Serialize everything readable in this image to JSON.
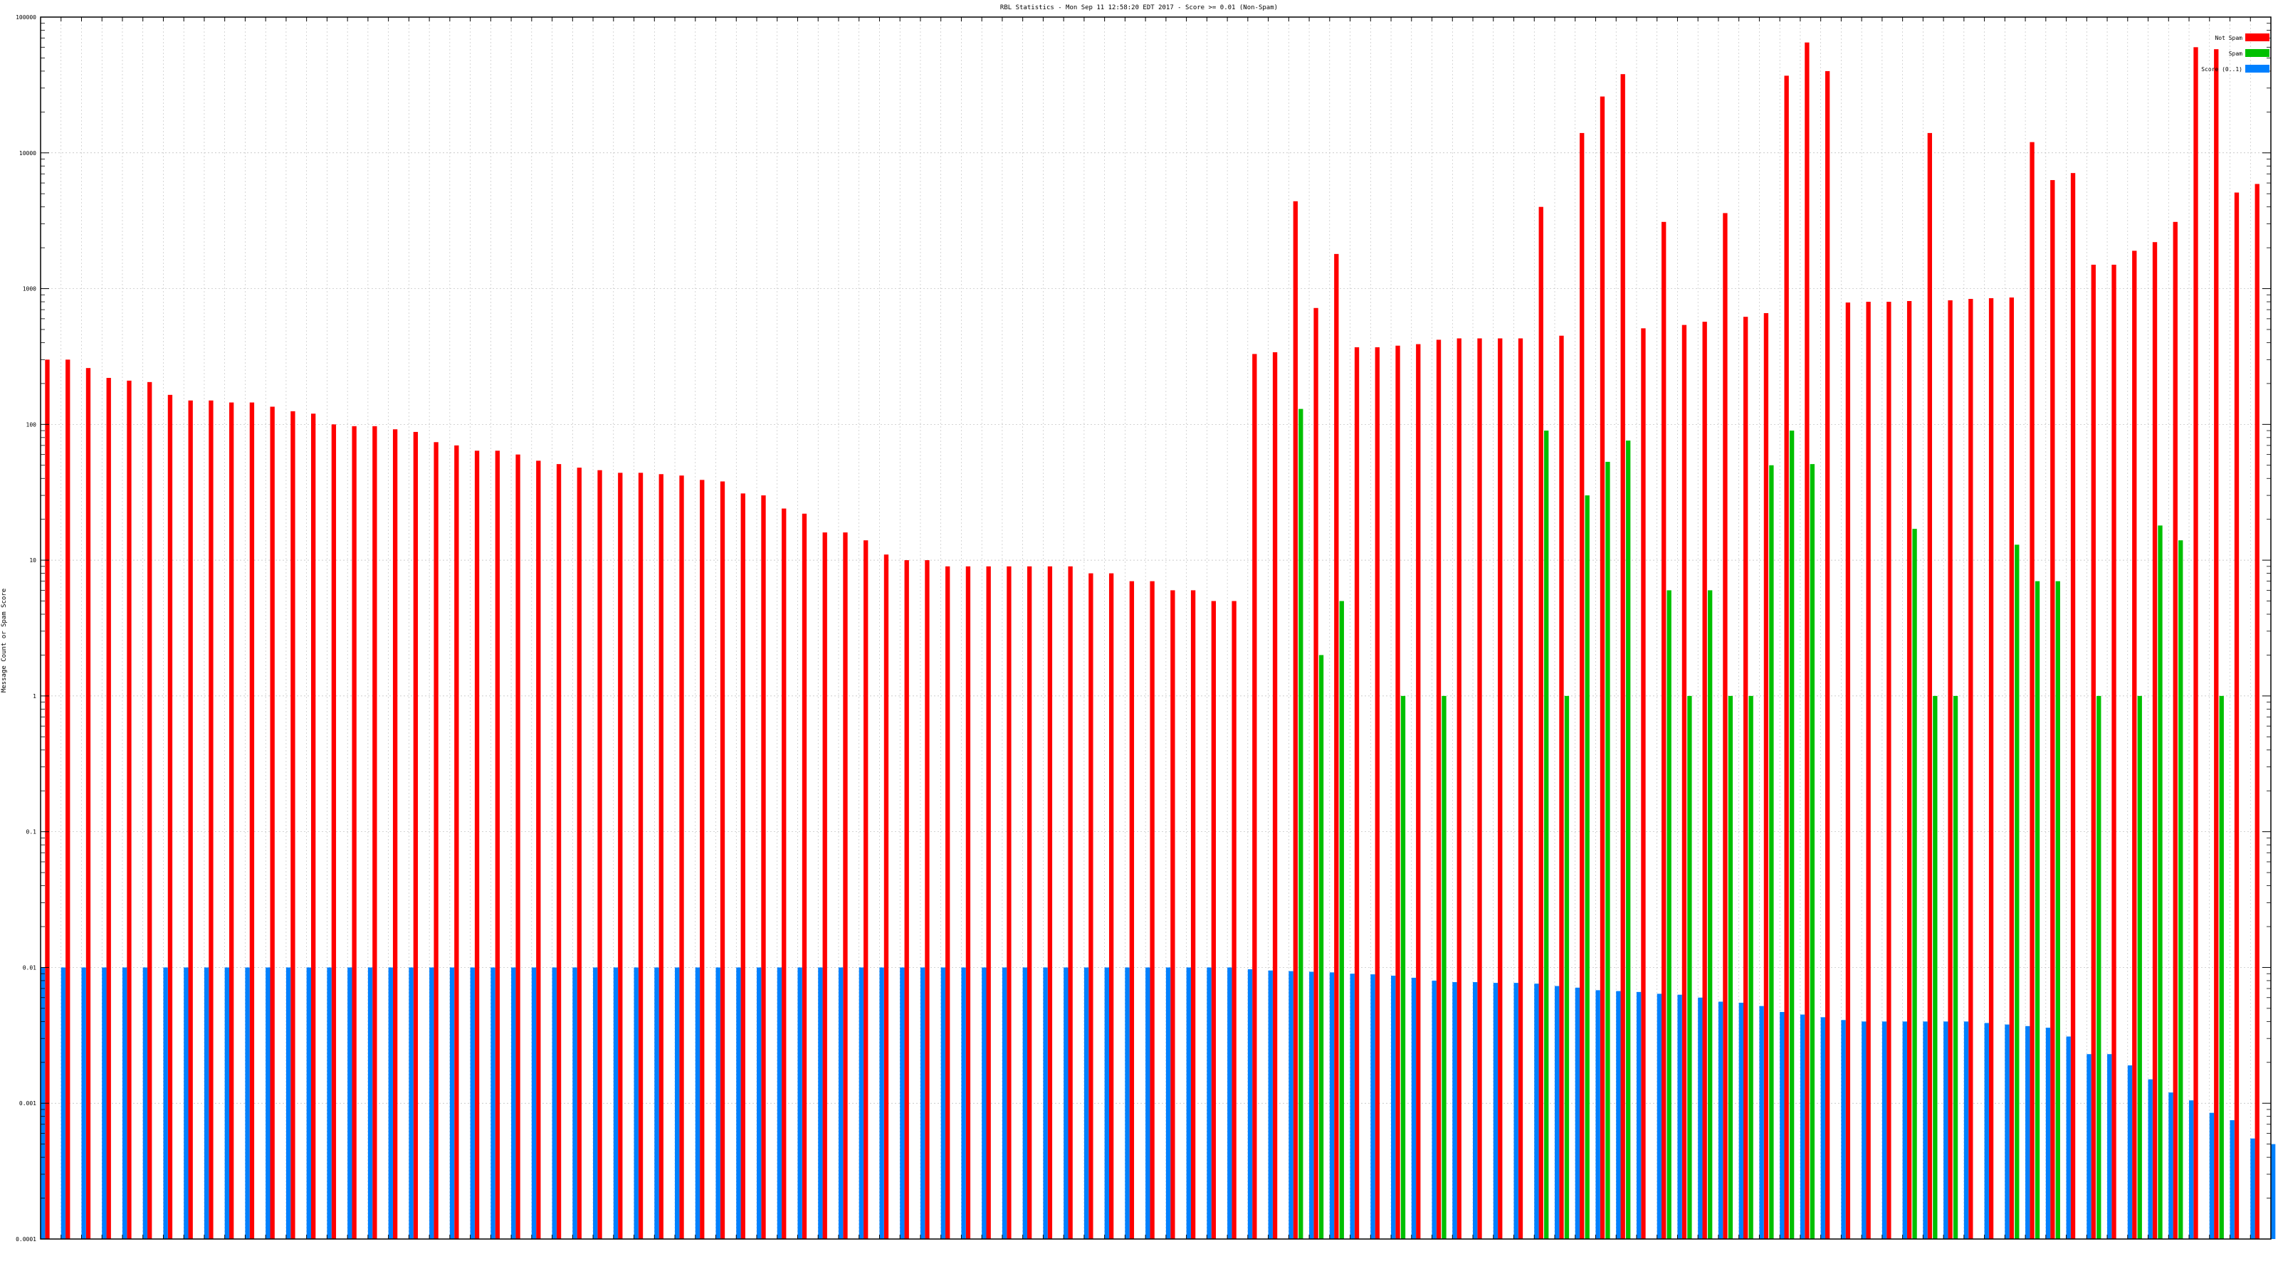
{
  "chart_data": {
    "type": "bar",
    "title": "RBL Statistics - Mon Sep 11 12:58:20 EDT 2017 - Score >= 0.01 (Non-Spam)",
    "xlabel": "",
    "ylabel": "Message Count or Spam Score",
    "yscale": "log",
    "ylim": [
      0.0001,
      100000
    ],
    "y_ticks": [
      "0.0001",
      "0.001",
      "0.01",
      "0.1",
      "1",
      "10",
      "100",
      "1000",
      "10000",
      "100000"
    ],
    "grid": true,
    "legend_position": "top-right",
    "series": [
      {
        "name": "Not Spam",
        "color": "#ff0000",
        "values": [
          300,
          300,
          260,
          220,
          210,
          205,
          165,
          150,
          150,
          145,
          145,
          135,
          125,
          120,
          100,
          97,
          97,
          92,
          88,
          74,
          70,
          64,
          64,
          60,
          54,
          51,
          48,
          46,
          44,
          44,
          43,
          42,
          39,
          38,
          31,
          30,
          24,
          22,
          16,
          16,
          14,
          11,
          10,
          10,
          9,
          9,
          9,
          9,
          9,
          9,
          9,
          8,
          8,
          7,
          7,
          6,
          6,
          5,
          5,
          330,
          340,
          4400,
          720,
          1800,
          370,
          370,
          380,
          390,
          420,
          430,
          430,
          430,
          430,
          4000,
          450,
          14000,
          26000,
          38000,
          510,
          3100,
          540,
          570,
          3600,
          620,
          660,
          37000,
          65000,
          40000,
          790,
          800,
          800,
          810,
          14000,
          820,
          840,
          850,
          860,
          12000,
          6300,
          7100,
          1500,
          1500,
          1900,
          2200,
          3100,
          60000,
          58000,
          5100,
          5900
        ]
      },
      {
        "name": "Spam",
        "color": "#00c000",
        "values": [
          null,
          null,
          null,
          null,
          null,
          null,
          null,
          null,
          null,
          null,
          null,
          null,
          null,
          null,
          null,
          null,
          null,
          null,
          null,
          null,
          null,
          null,
          null,
          null,
          null,
          null,
          null,
          null,
          null,
          null,
          null,
          null,
          null,
          null,
          null,
          null,
          null,
          null,
          null,
          null,
          null,
          null,
          null,
          null,
          null,
          null,
          null,
          null,
          null,
          null,
          null,
          null,
          null,
          null,
          null,
          null,
          null,
          null,
          null,
          null,
          null,
          130,
          2,
          5,
          null,
          null,
          1,
          null,
          1,
          null,
          null,
          null,
          null,
          90,
          1,
          30,
          53,
          76,
          null,
          6,
          1,
          6,
          1,
          1,
          50,
          90,
          51,
          null,
          null,
          null,
          null,
          17,
          1,
          1,
          null,
          null,
          13,
          7,
          7,
          null,
          1,
          null,
          1,
          18,
          14,
          null,
          1
        ]
      },
      {
        "name": "Score (0..1)",
        "color": "#0080ff",
        "values": [
          0.01,
          0.01,
          0.01,
          0.01,
          0.01,
          0.01,
          0.01,
          0.01,
          0.01,
          0.01,
          0.01,
          0.01,
          0.01,
          0.01,
          0.01,
          0.01,
          0.01,
          0.01,
          0.01,
          0.01,
          0.01,
          0.01,
          0.01,
          0.01,
          0.01,
          0.01,
          0.01,
          0.01,
          0.01,
          0.01,
          0.01,
          0.01,
          0.01,
          0.01,
          0.01,
          0.01,
          0.01,
          0.01,
          0.01,
          0.01,
          0.01,
          0.01,
          0.01,
          0.01,
          0.01,
          0.01,
          0.01,
          0.01,
          0.01,
          0.01,
          0.01,
          0.01,
          0.01,
          0.01,
          0.01,
          0.01,
          0.01,
          0.01,
          0.01,
          0.0097,
          0.0095,
          0.0094,
          0.0093,
          0.0092,
          0.009,
          0.0089,
          0.0087,
          0.0084,
          0.008,
          0.0078,
          0.0078,
          0.0077,
          0.0077,
          0.0076,
          0.0073,
          0.0071,
          0.0068,
          0.0067,
          0.0066,
          0.0064,
          0.0063,
          0.006,
          0.0056,
          0.0055,
          0.0052,
          0.0047,
          0.0045,
          0.0043,
          0.0041,
          0.004,
          0.004,
          0.004,
          0.004,
          0.004,
          0.004,
          0.0039,
          0.0038,
          0.0037,
          0.0036,
          0.0031,
          0.0023,
          0.0023,
          0.0019,
          0.0015,
          0.0012,
          0.00105,
          0.00085,
          0.00075,
          0.00055,
          0.0005
        ]
      }
    ]
  }
}
